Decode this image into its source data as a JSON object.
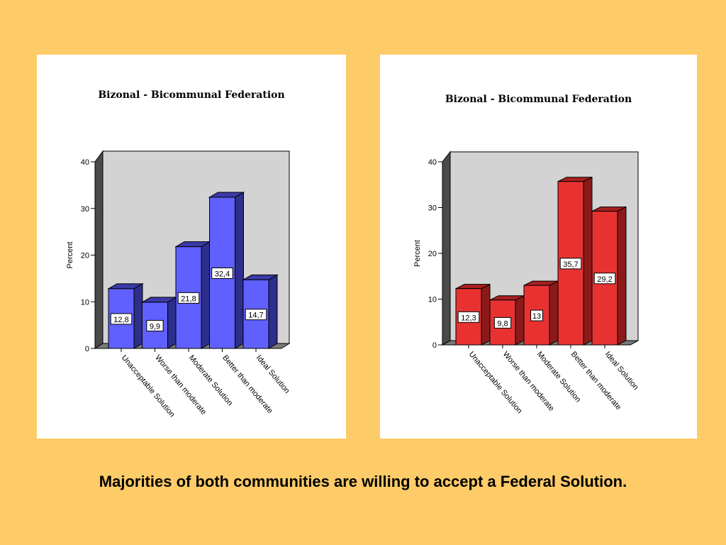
{
  "chart_data": [
    {
      "type": "bar",
      "title": "Bizonal - Bicommunal Federation",
      "ylabel": "Percent",
      "ylim": [
        0,
        40
      ],
      "yticks": [
        0,
        10,
        20,
        30,
        40
      ],
      "categories": [
        "Unacceptable Solution",
        "Worse than moderate",
        "Moderate Solution",
        "Better than moderate",
        "Ideal Solution"
      ],
      "values": [
        12.8,
        9.9,
        21.8,
        32.4,
        14.7
      ],
      "data_labels": [
        "12,8",
        "9,9",
        "21,8",
        "32,4",
        "14,7"
      ],
      "colors": {
        "face": "#6060FF",
        "side": "#2E2E8C",
        "top": "#3A3AA8"
      }
    },
    {
      "type": "bar",
      "title": "Bizonal - Bicommunal Federation",
      "ylabel": "Percent",
      "ylim": [
        0,
        40
      ],
      "yticks": [
        0,
        10,
        20,
        30,
        40
      ],
      "categories": [
        "Unacceptable Solution",
        "Worse than moderate",
        "Moderate Solution",
        "Better than moderate",
        "Ideal Solution"
      ],
      "values": [
        12.3,
        9.8,
        13,
        35.7,
        29.2
      ],
      "data_labels": [
        "12,3",
        "9,8",
        "13",
        "35,7",
        "29,2"
      ],
      "colors": {
        "face": "#E83232",
        "side": "#8C1A1A",
        "top": "#A82020"
      }
    }
  ],
  "caption": "Majorities of both communities are willing to accept a Federal Solution."
}
